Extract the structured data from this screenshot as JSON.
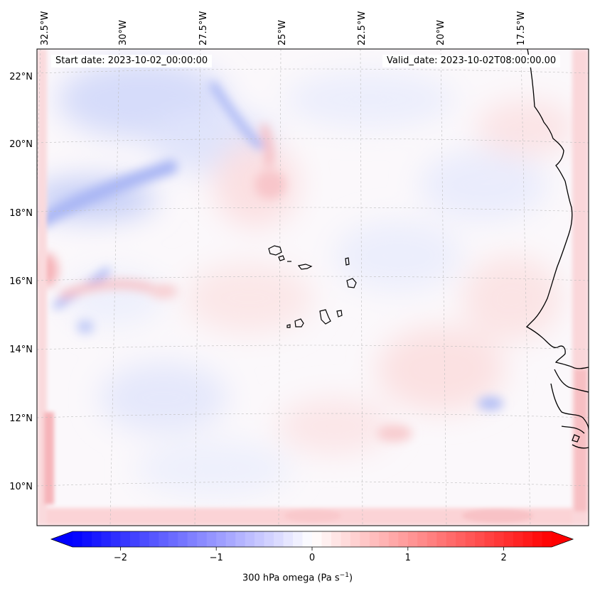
{
  "map": {
    "start_date_label": "Start date: 2023-10-02_00:00:00",
    "valid_date_label": "Valid_date: 2023-10-02T08:00:00.00",
    "lon_labels": [
      "32.5°W",
      "30°W",
      "27.5°W",
      "25°W",
      "22.5°W",
      "20°W",
      "17.5°W"
    ],
    "lat_labels": [
      "22°N",
      "20°N",
      "18°N",
      "16°N",
      "14°N",
      "12°N",
      "10°N"
    ],
    "lon_values": [
      -32.5,
      -30,
      -27.5,
      -25,
      -22.5,
      -20,
      -17.5
    ],
    "lat_values": [
      22,
      20,
      18,
      16,
      14,
      12,
      10
    ],
    "gridlines": true,
    "coastline_color": "#000000"
  },
  "colorbar": {
    "label_prefix": "300 hPa omega (Pa s",
    "label_exp": "−1",
    "label_suffix": ")",
    "ticks": [
      "−2",
      "−1",
      "0",
      "1",
      "2"
    ],
    "tick_values": [
      -2,
      -1,
      0,
      1,
      2
    ],
    "range": [
      -2.5,
      2.5
    ],
    "extend": "both",
    "colormap": "bwr",
    "low_color": "#0000ff",
    "mid_color": "#ffffff",
    "high_color": "#ff0000"
  }
}
